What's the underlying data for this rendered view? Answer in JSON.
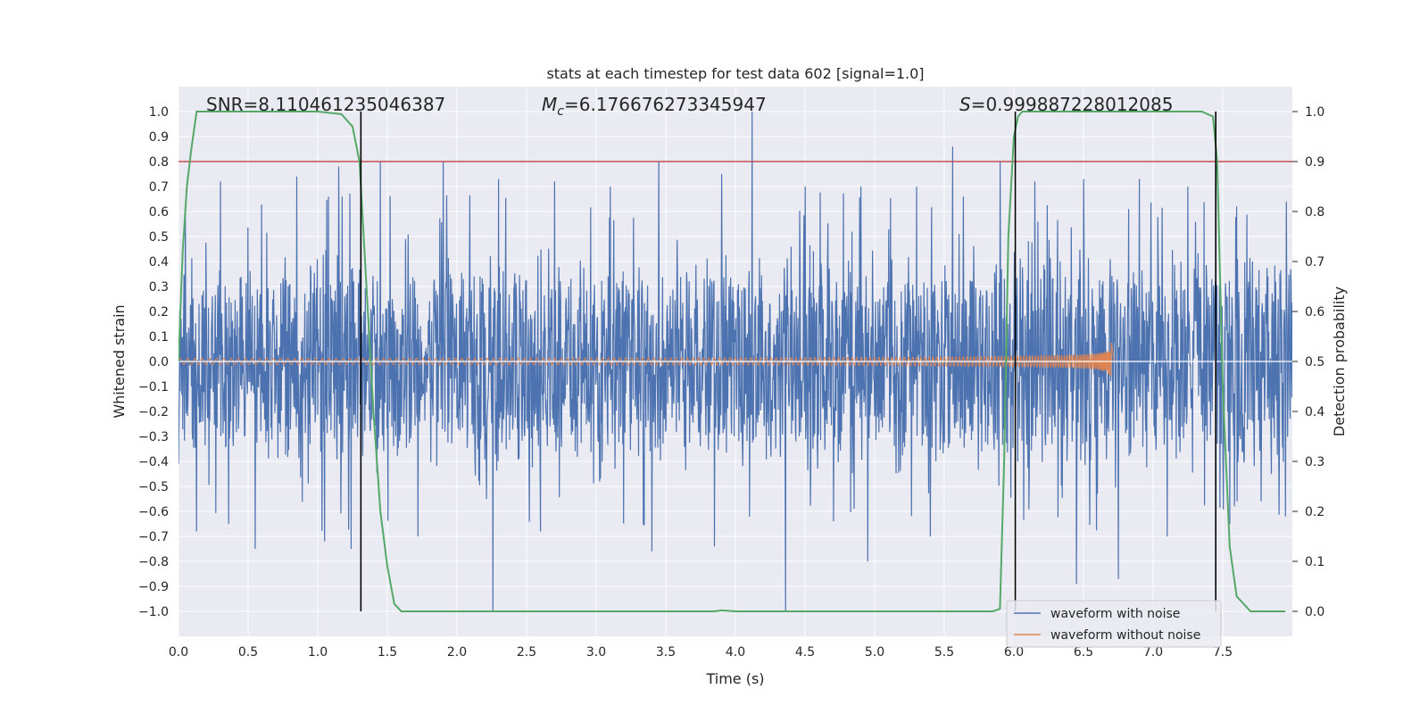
{
  "chart_data": {
    "type": "line",
    "title": "stats at each timestep for test data 602 [signal=1.0]",
    "xlabel": "Time (s)",
    "ylabel_left": "Whitened strain",
    "ylabel_right": "Detection probability",
    "xlim": [
      0,
      8
    ],
    "ylim_left": [
      -1.1,
      1.1
    ],
    "ylim_right": [
      -0.05,
      1.05
    ],
    "x_ticks": [
      0.0,
      0.5,
      1.0,
      1.5,
      2.0,
      2.5,
      3.0,
      3.5,
      4.0,
      4.5,
      5.0,
      5.5,
      6.0,
      6.5,
      7.0,
      7.5
    ],
    "x_tick_labels": [
      "0.0",
      "0.5",
      "1.0",
      "1.5",
      "2.0",
      "2.5",
      "3.0",
      "3.5",
      "4.0",
      "4.5",
      "5.0",
      "5.5",
      "6.0",
      "6.5",
      "7.0",
      "7.5"
    ],
    "y_left_ticks": [
      -1.0,
      -0.9,
      -0.8,
      -0.7,
      -0.6,
      -0.5,
      -0.4,
      -0.3,
      -0.2,
      -0.1,
      0.0,
      0.1,
      0.2,
      0.3,
      0.4,
      0.5,
      0.6,
      0.7,
      0.8,
      0.9,
      1.0
    ],
    "y_left_tick_labels": [
      "−1.0",
      "−0.9",
      "−0.8",
      "−0.7",
      "−0.6",
      "−0.5",
      "−0.4",
      "−0.3",
      "−0.2",
      "−0.1",
      "0.0",
      "0.1",
      "0.2",
      "0.3",
      "0.4",
      "0.5",
      "0.6",
      "0.7",
      "0.8",
      "0.9",
      "1.0"
    ],
    "y_right_ticks": [
      0.0,
      0.1,
      0.2,
      0.3,
      0.4,
      0.5,
      0.6,
      0.7,
      0.8,
      0.9,
      1.0
    ],
    "y_right_tick_labels": [
      "0.0",
      "0.1",
      "0.2",
      "0.3",
      "0.4",
      "0.5",
      "0.6",
      "0.7",
      "0.8",
      "0.9",
      "1.0"
    ],
    "grid": true,
    "annotations": {
      "snr": "SNR=8.110461235046387",
      "mc_symbol": "M",
      "mc_subscript": "c",
      "mc_value": "=6.176676273345947",
      "s_symbol": "S",
      "s_value": "=0.999887228012085"
    },
    "threshold": {
      "value": 0.9,
      "axis": "right",
      "color": "#c44e52"
    },
    "vertical_lines": [
      1.31,
      6.01,
      7.45
    ],
    "series": [
      {
        "name": "waveform with noise",
        "axis": "left",
        "color": "#4c72b0",
        "noise_envelope": {
          "typical_amplitude": 0.35,
          "peak_max": 1.0,
          "peak_min": -1.0
        },
        "peaks": [
          [
            0.05,
            0.6
          ],
          [
            0.3,
            0.72
          ],
          [
            0.55,
            0.7
          ],
          [
            0.85,
            0.74
          ],
          [
            1.15,
            0.78
          ],
          [
            1.45,
            0.8
          ],
          [
            1.9,
            0.8
          ],
          [
            2.3,
            0.73
          ],
          [
            2.7,
            0.72
          ],
          [
            3.1,
            0.7
          ],
          [
            3.45,
            0.8
          ],
          [
            3.9,
            0.75
          ],
          [
            4.12,
            1.0
          ],
          [
            4.5,
            0.7
          ],
          [
            4.9,
            0.7
          ],
          [
            5.3,
            0.7
          ],
          [
            5.56,
            0.86
          ],
          [
            5.9,
            0.8
          ],
          [
            6.15,
            0.72
          ],
          [
            6.5,
            0.73
          ],
          [
            6.9,
            0.73
          ],
          [
            7.25,
            0.7
          ],
          [
            7.6,
            0.62
          ],
          [
            7.95,
            0.62
          ]
        ],
        "troughs": [
          [
            0.13,
            -0.68
          ],
          [
            0.36,
            -0.65
          ],
          [
            0.55,
            -0.75
          ],
          [
            1.05,
            -0.72
          ],
          [
            1.24,
            -0.75
          ],
          [
            1.72,
            -0.7
          ],
          [
            2.26,
            -1.0
          ],
          [
            2.6,
            -0.68
          ],
          [
            3.4,
            -0.76
          ],
          [
            3.85,
            -0.74
          ],
          [
            4.36,
            -1.0
          ],
          [
            4.95,
            -0.8
          ],
          [
            5.4,
            -0.7
          ],
          [
            6.45,
            -0.89
          ],
          [
            6.75,
            -0.87
          ],
          [
            7.1,
            -0.7
          ],
          [
            7.55,
            -0.65
          ],
          [
            7.95,
            -0.62
          ]
        ]
      },
      {
        "name": "waveform without noise",
        "axis": "left",
        "color": "#dd8452",
        "chirp": {
          "t_start": 0.0,
          "t_merger": 6.7,
          "amp_start": 0.012,
          "amp_peak": 0.23,
          "freq_start_hz": 19
        }
      },
      {
        "name": "detection probability",
        "axis": "right",
        "color": "#55a868",
        "x": [
          0.0,
          0.03,
          0.06,
          0.09,
          0.13,
          0.2,
          0.3,
          0.5,
          0.8,
          1.0,
          1.17,
          1.25,
          1.3,
          1.35,
          1.4,
          1.45,
          1.5,
          1.55,
          1.6,
          1.7,
          2.0,
          3.0,
          3.85,
          3.9,
          4.0,
          5.0,
          5.85,
          5.9,
          5.93,
          5.96,
          6.0,
          6.03,
          6.06,
          6.1,
          6.5,
          7.0,
          7.35,
          7.43,
          7.46,
          7.5,
          7.55,
          7.6,
          7.7,
          7.8,
          7.95
        ],
        "y": [
          0.5,
          0.72,
          0.85,
          0.92,
          1.0,
          1.0,
          1.0,
          1.0,
          1.0,
          1.0,
          0.995,
          0.97,
          0.9,
          0.65,
          0.4,
          0.2,
          0.09,
          0.015,
          0.0,
          0.0,
          0.0,
          0.0,
          0.0,
          0.002,
          0.0,
          0.0,
          0.0,
          0.005,
          0.3,
          0.75,
          0.95,
          0.99,
          1.0,
          1.0,
          1.0,
          1.0,
          1.0,
          0.99,
          0.9,
          0.45,
          0.13,
          0.03,
          0.0,
          0.0,
          0.0
        ]
      }
    ],
    "legend": {
      "placement": "lower-right",
      "entries": [
        {
          "label": "waveform with noise",
          "color": "#4c72b0"
        },
        {
          "label": "waveform without noise",
          "color": "#dd8452"
        }
      ]
    }
  }
}
